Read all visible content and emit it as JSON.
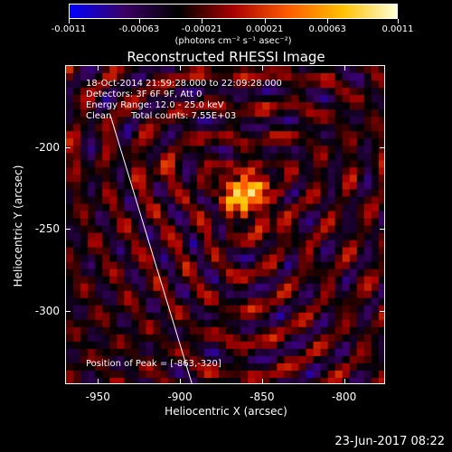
{
  "chart_data": {
    "type": "heatmap",
    "title": "Reconstructed RHESSI Image",
    "xlabel": "Heliocentric X (arcsec)",
    "ylabel": "Heliocentric Y (arcsec)",
    "xlim": [
      -970,
      -775
    ],
    "ylim": [
      -345,
      -150
    ],
    "xticks": [
      -950,
      -900,
      -850,
      -800
    ],
    "yticks": [
      -200,
      -250,
      -300
    ],
    "colorbar": {
      "min": -0.0011,
      "max": 0.0011,
      "tick_values": [
        -0.0011,
        -0.00063,
        -0.00021,
        0.00021,
        0.00063,
        0.0011
      ],
      "tick_labels": [
        "-0.0011",
        "-0.00063",
        "-0.00021",
        "0.00021",
        "0.00063",
        "0.0011"
      ],
      "units": "(photons cm⁻² s⁻¹ asec⁻²)"
    },
    "colormap": [
      "#0000ff",
      "#3b0066",
      "#000000",
      "#a80000",
      "#ff5a00",
      "#ffc000",
      "#ffffd8"
    ],
    "peak": {
      "x": -863,
      "y": -320
    },
    "limb_line": {
      "x1": -943,
      "y1": -180,
      "x2": -893,
      "y2": -345
    },
    "info": {
      "time": "18-Oct-2014 21:59:28.000 to 22:09:28.000",
      "detectors": "Detectors: 3F 6F 9F, Att 0",
      "energy": "Energy Range: 12.0 - 25.0 keV",
      "method": "Clean",
      "counts": "Total counts: 7.55E+03",
      "peak_label": "Position of Peak = [-863,-320]"
    }
  },
  "timestamp": "23-Jun-2017 08:22"
}
